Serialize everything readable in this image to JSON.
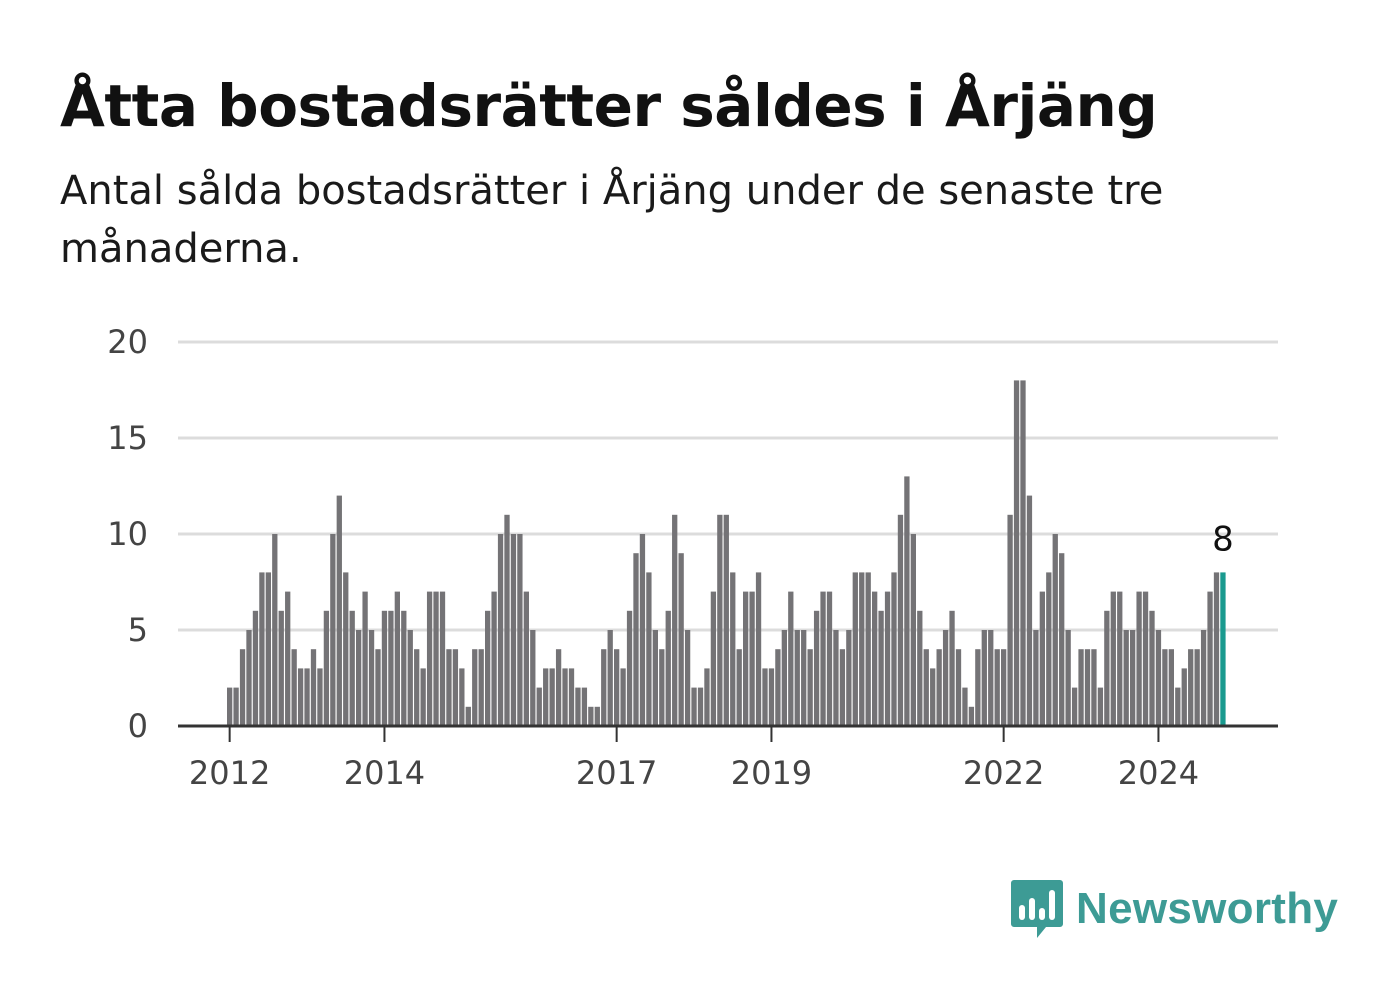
{
  "header": {
    "title": "Åtta bostadsrätter såldes i Årjäng",
    "subtitle": "Antal sålda bostadsrätter i Årjäng under de senaste tre månaderna."
  },
  "brand": {
    "name": "Newsworthy",
    "color": "#3d9b95",
    "icon": "bar-chart-icon"
  },
  "colors": {
    "bar": "#747376",
    "highlight": "#1a9a8f",
    "grid": "#dcdcdc",
    "axis": "#333333"
  },
  "chart_data": {
    "type": "bar",
    "title": "Åtta bostadsrätter såldes i Årjäng",
    "subtitle": "Antal sålda bostadsrätter i Årjäng under de senaste tre månaderna.",
    "xlabel": "",
    "ylabel": "",
    "ylim": [
      0,
      20
    ],
    "yticks": [
      0,
      5,
      10,
      15,
      20
    ],
    "xticks": [
      "2012",
      "2014",
      "2017",
      "2019",
      "2022",
      "2024"
    ],
    "xtick_positions": [
      "2012-01",
      "2014-01",
      "2017-01",
      "2019-01",
      "2022-01",
      "2024-01"
    ],
    "grid": true,
    "start_month": "2012-01",
    "values": [
      2,
      2,
      4,
      5,
      6,
      8,
      8,
      10,
      6,
      7,
      4,
      3,
      3,
      4,
      3,
      6,
      10,
      12,
      8,
      6,
      5,
      7,
      5,
      4,
      6,
      6,
      7,
      6,
      5,
      4,
      3,
      7,
      7,
      7,
      4,
      4,
      3,
      1,
      4,
      4,
      6,
      7,
      10,
      11,
      10,
      10,
      7,
      5,
      2,
      3,
      3,
      4,
      3,
      3,
      2,
      2,
      1,
      1,
      4,
      5,
      4,
      3,
      6,
      9,
      10,
      8,
      5,
      4,
      6,
      11,
      9,
      5,
      2,
      2,
      3,
      7,
      11,
      11,
      8,
      4,
      7,
      7,
      8,
      3,
      3,
      4,
      5,
      7,
      5,
      5,
      4,
      6,
      7,
      7,
      5,
      4,
      5,
      8,
      8,
      8,
      7,
      6,
      7,
      8,
      11,
      13,
      10,
      6,
      4,
      3,
      4,
      5,
      6,
      4,
      2,
      1,
      4,
      5,
      5,
      4,
      4,
      11,
      18,
      18,
      12,
      5,
      7,
      8,
      10,
      9,
      5,
      2,
      4,
      4,
      4,
      2,
      6,
      7,
      7,
      5,
      5,
      7,
      7,
      6,
      5,
      4,
      4,
      2,
      3,
      4,
      4,
      5,
      7,
      8,
      8
    ],
    "highlight_last": true,
    "highlight_label": "8"
  }
}
